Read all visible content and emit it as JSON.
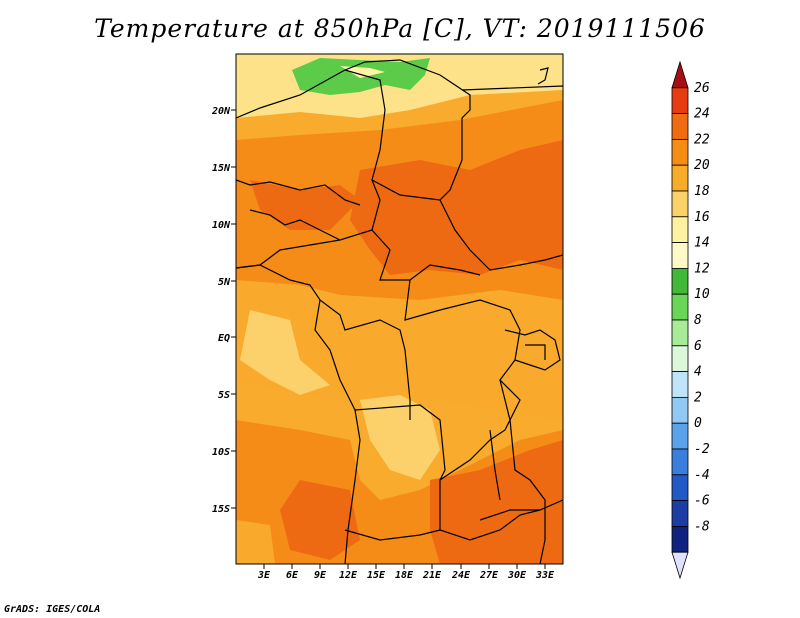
{
  "title": "Temperature at 850hPa [C], VT: 2019111506",
  "credit": "GrADS: IGES/COLA",
  "lat_labels": [
    "20N",
    "15N",
    "10N",
    "5N",
    "EQ",
    "5S",
    "10S",
    "15S"
  ],
  "lon_labels": [
    "3E",
    "6E",
    "9E",
    "12E",
    "15E",
    "18E",
    "21E",
    "24E",
    "27E",
    "30E",
    "33E"
  ],
  "colorbar": {
    "labels": [
      "26",
      "24",
      "22",
      "20",
      "18",
      "16",
      "14",
      "12",
      "10",
      "8",
      "6",
      "4",
      "2",
      "0",
      "-2",
      "-4",
      "-6",
      "-8"
    ],
    "colors": [
      "#a50f15",
      "#e63c12",
      "#ef6d10",
      "#f58d15",
      "#f8ad2a",
      "#fbd26a",
      "#fdf1a2",
      "#fff9c8",
      "#41b838",
      "#6ad657",
      "#a8ec98",
      "#dcf7d9",
      "#bfe3f8",
      "#93c8f3",
      "#5aa3eb",
      "#3a7fdc",
      "#2159c6",
      "#1c3ea3",
      "#102280",
      "#e0e0ff"
    ]
  },
  "legend_colors": {
    "orange_dark": "#ee6a12",
    "orange": "#f68c18",
    "light_orange": "#f9aa2c",
    "yellow": "#fcd16b",
    "pale": "#fef3a6",
    "green": "#5ccb4a"
  }
}
